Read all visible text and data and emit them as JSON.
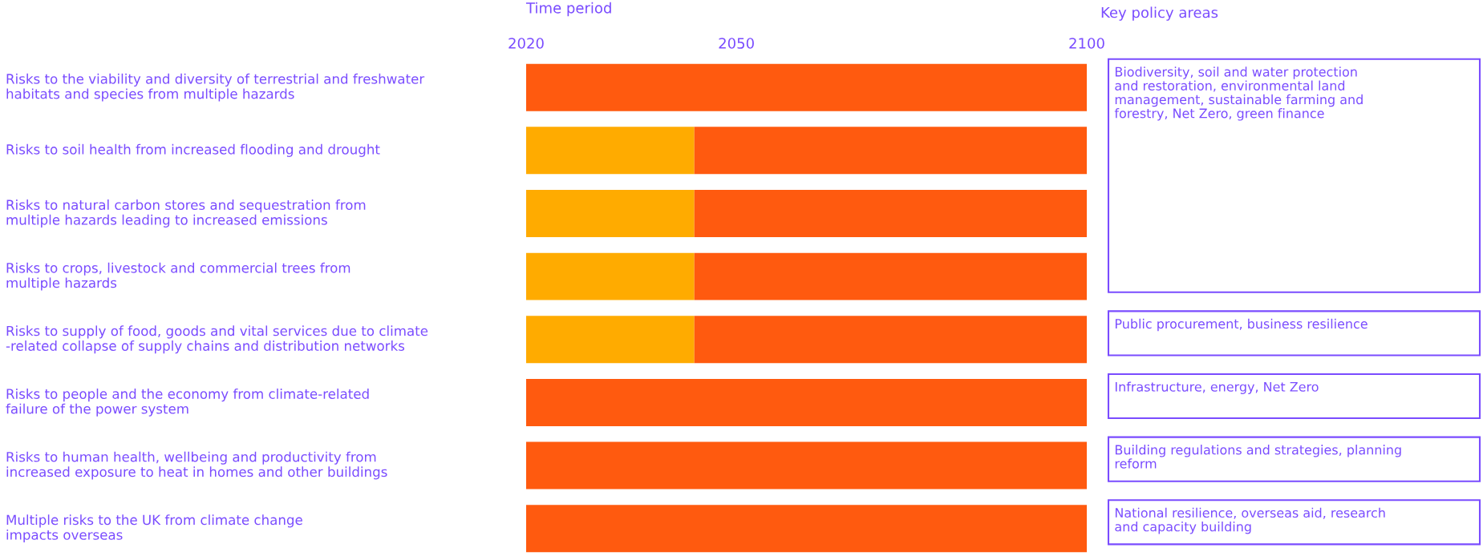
{
  "chart_data": {
    "type": "bar",
    "orientation": "horizontal",
    "xlabel": "Time period",
    "categories": [
      "Risks to the viability and diversity of terrestrial and freshwater\nhabitats and species from multiple hazards",
      "Risks to soil health from increased flooding and drought",
      "Risks to natural carbon stores and sequestration from\nmultiple hazards leading to increased emissions",
      "Risks to crops, livestock and commercial trees from\nmultiple hazards",
      "Risks to supply of food, goods and vital services due to climate\n-related collapse of supply chains and distribution networks",
      "Risks to people and the economy from climate-related\nfailure of the power system",
      "Risks to human health, wellbeing and productivity from\nincreased exposure to heat in homes and other buildings",
      "Multiple risks to the UK from climate change\nimpacts overseas"
    ],
    "series": [
      {
        "color": "#ffab00",
        "base": [
          null,
          2020,
          2020,
          2020,
          2020,
          null,
          null,
          null
        ],
        "values": [
          null,
          24,
          24,
          24,
          24,
          null,
          null,
          null
        ]
      },
      {
        "color": "#ff5a0f",
        "base": [
          2020,
          2044,
          2044,
          2044,
          2044,
          2020,
          2020,
          2020
        ],
        "values": [
          80,
          56,
          56,
          56,
          56,
          80,
          80,
          80
        ]
      }
    ],
    "xlim": [
      2020,
      2100
    ],
    "xticks": [
      2020,
      2050,
      2100
    ],
    "annotations": [
      "Key policy areas",
      "Biodiversity, soil and water protection\nand restoration, environmental land\nmanagement, sustainable farming and\nforestry, Net Zero, green finance",
      "Public procurement, business resilience",
      "Infrastructure, energy, Net Zero",
      "Building regulations and strategies, planning\nreform",
      "National resilience, overseas aid, research\nand capacity building"
    ]
  }
}
